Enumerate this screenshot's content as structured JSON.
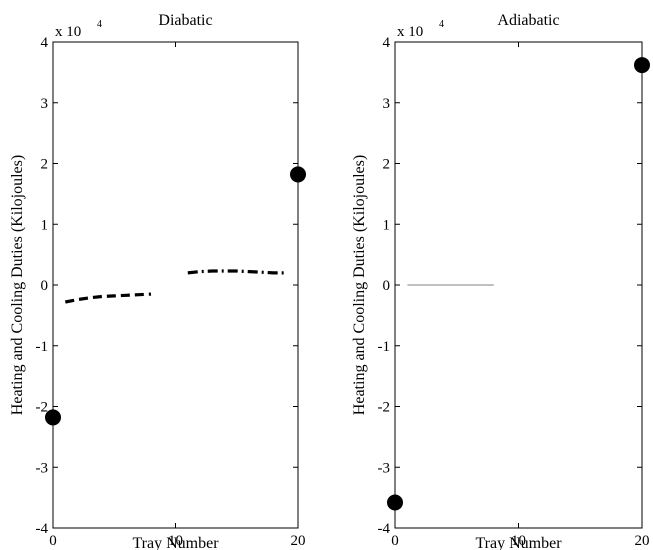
{
  "chart_data": [
    {
      "type": "line",
      "title": "Diabatic",
      "xlabel": "Tray Number",
      "ylabel": "Heating and Cooling Duties (Kilojoules)",
      "exponent_base": "x 10",
      "exponent_power": "4",
      "xlim": [
        0,
        20
      ],
      "ylim": [
        -4,
        4
      ],
      "xticks": [
        "0",
        "10",
        "20"
      ],
      "yticks": [
        "-4",
        "-3",
        "-2",
        "-1",
        "0",
        "1",
        "2",
        "3",
        "4"
      ],
      "series": [
        {
          "style": "dashed",
          "color": "#000000",
          "x": [
            1,
            2,
            3,
            4,
            5,
            6,
            7,
            8
          ],
          "y": [
            -0.28,
            -0.24,
            -0.21,
            -0.19,
            -0.18,
            -0.17,
            -0.16,
            -0.15
          ]
        },
        {
          "style": "dash-dot",
          "color": "#000000",
          "x": [
            11,
            12,
            13,
            14,
            15,
            16,
            17,
            18,
            19
          ],
          "y": [
            0.2,
            0.22,
            0.23,
            0.23,
            0.23,
            0.22,
            0.21,
            0.2,
            0.2
          ]
        }
      ],
      "markers": [
        {
          "x": 0,
          "y": -2.18
        },
        {
          "x": 20,
          "y": 1.82
        }
      ]
    },
    {
      "type": "line",
      "title": "Adiabatic",
      "xlabel": "Tray Number",
      "ylabel": "Heating and Cooling Duties (Kilojoules)",
      "exponent_base": "x 10",
      "exponent_power": "4",
      "xlim": [
        0,
        20
      ],
      "ylim": [
        -4,
        4
      ],
      "xticks": [
        "0",
        "10",
        "20"
      ],
      "yticks": [
        "-4",
        "-3",
        "-2",
        "-1",
        "0",
        "1",
        "2",
        "3",
        "4"
      ],
      "series": [
        {
          "style": "solid",
          "color": "#808080",
          "x": [
            1,
            8
          ],
          "y": [
            0,
            0
          ]
        }
      ],
      "markers": [
        {
          "x": 0,
          "y": -3.58
        },
        {
          "x": 20,
          "y": 3.62
        }
      ]
    }
  ]
}
